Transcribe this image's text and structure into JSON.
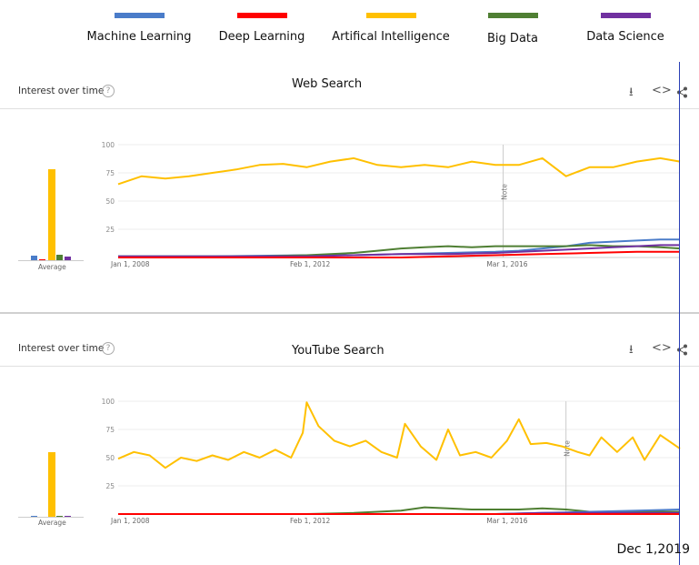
{
  "legend": [
    {
      "label": "Machine Learning",
      "color": "#4a7cc9"
    },
    {
      "label": "Deep Learning",
      "color": "#ff0000"
    },
    {
      "label": "Artifical Intelligence",
      "color": "#ffc000"
    },
    {
      "label": "Big Data",
      "color": "#4f7f33"
    },
    {
      "label": "Data Science",
      "color": "#7030a0"
    }
  ],
  "panels": [
    {
      "interest_label": "Interest over time",
      "title": "Web Search",
      "note_label": "Note",
      "average_label": "Average"
    },
    {
      "interest_label": "Interest over time",
      "title": "YouTube Search",
      "note_label": "Note",
      "average_label": "Average"
    }
  ],
  "icons": {
    "download": "download-icon",
    "embed": "embed-icon",
    "share": "share-icon",
    "help": "help-icon"
  },
  "marker_date": "Dec 1,2019",
  "chart_data": [
    {
      "type": "line",
      "title": "Web Search",
      "yticks": [
        25,
        50,
        75,
        100
      ],
      "ylim": [
        0,
        100
      ],
      "xtick_labels": [
        "Jan 1, 2008",
        "Feb 1, 2012",
        "Mar 1, 2016"
      ],
      "xlim": [
        "2008-01",
        "2019-12"
      ],
      "note_at": "2016-03",
      "grid": true,
      "averages": {
        "Machine Learning": 4,
        "Deep Learning": 1,
        "Artifical Intelligence": 80,
        "Big Data": 5,
        "Data Science": 3
      },
      "series": [
        {
          "name": "Artifical Intelligence",
          "points": [
            [
              "2008-01",
              65
            ],
            [
              "2008-07",
              72
            ],
            [
              "2009-01",
              70
            ],
            [
              "2009-07",
              72
            ],
            [
              "2010-01",
              75
            ],
            [
              "2010-07",
              78
            ],
            [
              "2011-01",
              82
            ],
            [
              "2011-07",
              83
            ],
            [
              "2012-01",
              80
            ],
            [
              "2012-07",
              85
            ],
            [
              "2013-01",
              88
            ],
            [
              "2013-07",
              82
            ],
            [
              "2014-01",
              80
            ],
            [
              "2014-07",
              82
            ],
            [
              "2015-01",
              80
            ],
            [
              "2015-07",
              85
            ],
            [
              "2016-01",
              82
            ],
            [
              "2016-07",
              82
            ],
            [
              "2017-01",
              88
            ],
            [
              "2017-07",
              72
            ],
            [
              "2018-01",
              80
            ],
            [
              "2018-07",
              80
            ],
            [
              "2019-01",
              85
            ],
            [
              "2019-07",
              88
            ],
            [
              "2019-12",
              85
            ]
          ]
        },
        {
          "name": "Machine Learning",
          "points": [
            [
              "2008-01",
              1
            ],
            [
              "2010-01",
              1
            ],
            [
              "2012-01",
              2
            ],
            [
              "2013-01",
              2
            ],
            [
              "2014-01",
              3
            ],
            [
              "2015-01",
              4
            ],
            [
              "2016-01",
              5
            ],
            [
              "2016-07",
              6
            ],
            [
              "2017-01",
              8
            ],
            [
              "2017-07",
              10
            ],
            [
              "2018-01",
              13
            ],
            [
              "2018-07",
              14
            ],
            [
              "2019-01",
              15
            ],
            [
              "2019-07",
              16
            ],
            [
              "2019-12",
              16
            ]
          ]
        },
        {
          "name": "Big Data",
          "points": [
            [
              "2008-01",
              1
            ],
            [
              "2011-01",
              1
            ],
            [
              "2012-01",
              2
            ],
            [
              "2013-01",
              4
            ],
            [
              "2013-07",
              6
            ],
            [
              "2014-01",
              8
            ],
            [
              "2014-07",
              9
            ],
            [
              "2015-01",
              10
            ],
            [
              "2015-07",
              9
            ],
            [
              "2016-01",
              10
            ],
            [
              "2016-07",
              10
            ],
            [
              "2017-01",
              10
            ],
            [
              "2017-07",
              10
            ],
            [
              "2018-01",
              11
            ],
            [
              "2018-07",
              10
            ],
            [
              "2019-01",
              10
            ],
            [
              "2019-07",
              9
            ],
            [
              "2019-12",
              8
            ]
          ]
        },
        {
          "name": "Data Science",
          "points": [
            [
              "2008-01",
              1
            ],
            [
              "2012-01",
              1
            ],
            [
              "2013-01",
              2
            ],
            [
              "2014-01",
              3
            ],
            [
              "2015-01",
              3
            ],
            [
              "2016-01",
              4
            ],
            [
              "2017-01",
              6
            ],
            [
              "2018-01",
              8
            ],
            [
              "2018-07",
              9
            ],
            [
              "2019-01",
              10
            ],
            [
              "2019-07",
              11
            ],
            [
              "2019-12",
              11
            ]
          ]
        },
        {
          "name": "Deep Learning",
          "points": [
            [
              "2008-01",
              0
            ],
            [
              "2014-01",
              0
            ],
            [
              "2015-01",
              1
            ],
            [
              "2016-01",
              2
            ],
            [
              "2017-01",
              3
            ],
            [
              "2018-01",
              4
            ],
            [
              "2019-01",
              5
            ],
            [
              "2019-12",
              5
            ]
          ]
        }
      ]
    },
    {
      "type": "line",
      "title": "YouTube Search",
      "yticks": [
        25,
        50,
        75,
        100
      ],
      "ylim": [
        0,
        100
      ],
      "xtick_labels": [
        "Jan 1, 2008",
        "Feb 1, 2012",
        "Mar 1, 2016"
      ],
      "xlim": [
        "2008-01",
        "2019-12"
      ],
      "note_at": "2017-07",
      "grid": true,
      "averages": {
        "Machine Learning": 1,
        "Deep Learning": 0,
        "Artifical Intelligence": 57,
        "Big Data": 1,
        "Data Science": 1
      },
      "series": [
        {
          "name": "Artifical Intelligence",
          "points": [
            [
              "2008-01",
              49
            ],
            [
              "2008-05",
              55
            ],
            [
              "2008-09",
              52
            ],
            [
              "2009-01",
              41
            ],
            [
              "2009-05",
              50
            ],
            [
              "2009-09",
              47
            ],
            [
              "2010-01",
              52
            ],
            [
              "2010-05",
              48
            ],
            [
              "2010-09",
              55
            ],
            [
              "2011-01",
              50
            ],
            [
              "2011-05",
              57
            ],
            [
              "2011-09",
              50
            ],
            [
              "2011-12",
              72
            ],
            [
              "2012-01",
              99
            ],
            [
              "2012-04",
              78
            ],
            [
              "2012-08",
              65
            ],
            [
              "2012-12",
              60
            ],
            [
              "2013-04",
              65
            ],
            [
              "2013-08",
              55
            ],
            [
              "2013-12",
              50
            ],
            [
              "2014-02",
              80
            ],
            [
              "2014-06",
              60
            ],
            [
              "2014-10",
              48
            ],
            [
              "2015-01",
              75
            ],
            [
              "2015-04",
              52
            ],
            [
              "2015-08",
              55
            ],
            [
              "2015-12",
              50
            ],
            [
              "2016-04",
              65
            ],
            [
              "2016-07",
              84
            ],
            [
              "2016-10",
              62
            ],
            [
              "2017-02",
              63
            ],
            [
              "2017-06",
              60
            ],
            [
              "2017-10",
              55
            ],
            [
              "2018-01",
              52
            ],
            [
              "2018-04",
              68
            ],
            [
              "2018-08",
              55
            ],
            [
              "2018-12",
              68
            ],
            [
              "2019-03",
              48
            ],
            [
              "2019-07",
              70
            ],
            [
              "2019-12",
              58
            ]
          ]
        },
        {
          "name": "Big Data",
          "points": [
            [
              "2008-01",
              0
            ],
            [
              "2012-01",
              0
            ],
            [
              "2013-01",
              1
            ],
            [
              "2014-01",
              3
            ],
            [
              "2014-07",
              6
            ],
            [
              "2015-01",
              5
            ],
            [
              "2015-07",
              4
            ],
            [
              "2016-01",
              4
            ],
            [
              "2016-07",
              4
            ],
            [
              "2017-01",
              5
            ],
            [
              "2017-07",
              4
            ],
            [
              "2018-01",
              2
            ],
            [
              "2019-01",
              2
            ],
            [
              "2019-12",
              2
            ]
          ]
        },
        {
          "name": "Machine Learning",
          "points": [
            [
              "2008-01",
              0
            ],
            [
              "2016-01",
              0
            ],
            [
              "2017-01",
              1
            ],
            [
              "2018-01",
              2
            ],
            [
              "2019-01",
              3
            ],
            [
              "2019-12",
              4
            ]
          ]
        },
        {
          "name": "Data Science",
          "points": [
            [
              "2008-01",
              0
            ],
            [
              "2016-01",
              0
            ],
            [
              "2017-01",
              1
            ],
            [
              "2018-01",
              1
            ],
            [
              "2019-01",
              1
            ],
            [
              "2019-12",
              1
            ]
          ]
        },
        {
          "name": "Deep Learning",
          "points": [
            [
              "2008-01",
              0
            ],
            [
              "2019-12",
              0
            ]
          ]
        }
      ]
    }
  ]
}
